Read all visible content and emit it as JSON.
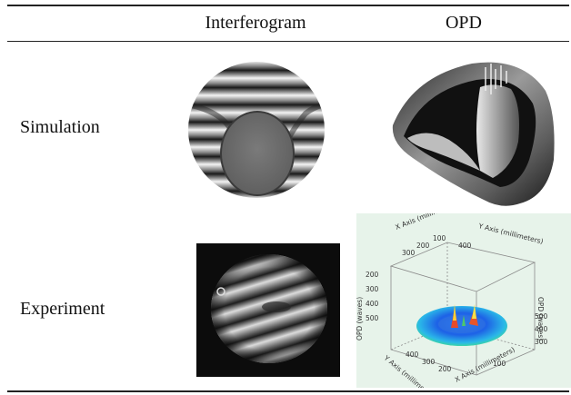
{
  "table": {
    "columns": [
      "",
      "Interferogram",
      "OPD"
    ],
    "rows": [
      {
        "label": "Simulation"
      },
      {
        "label": "Experiment"
      }
    ]
  },
  "plot3d": {
    "x_axis_label": "X Axis (millimeters)",
    "y_axis_label": "Y Axis (millimeters)",
    "z_axis_label": "OPD (waves)",
    "ticks_top": [
      "100",
      "200",
      "300",
      "400"
    ],
    "ticks_bottom": [
      "400",
      "300",
      "200",
      "100"
    ],
    "ticks_left": [
      "200",
      "300",
      "400",
      "500"
    ],
    "ticks_z": [
      "200",
      "300",
      "400",
      "500"
    ]
  }
}
